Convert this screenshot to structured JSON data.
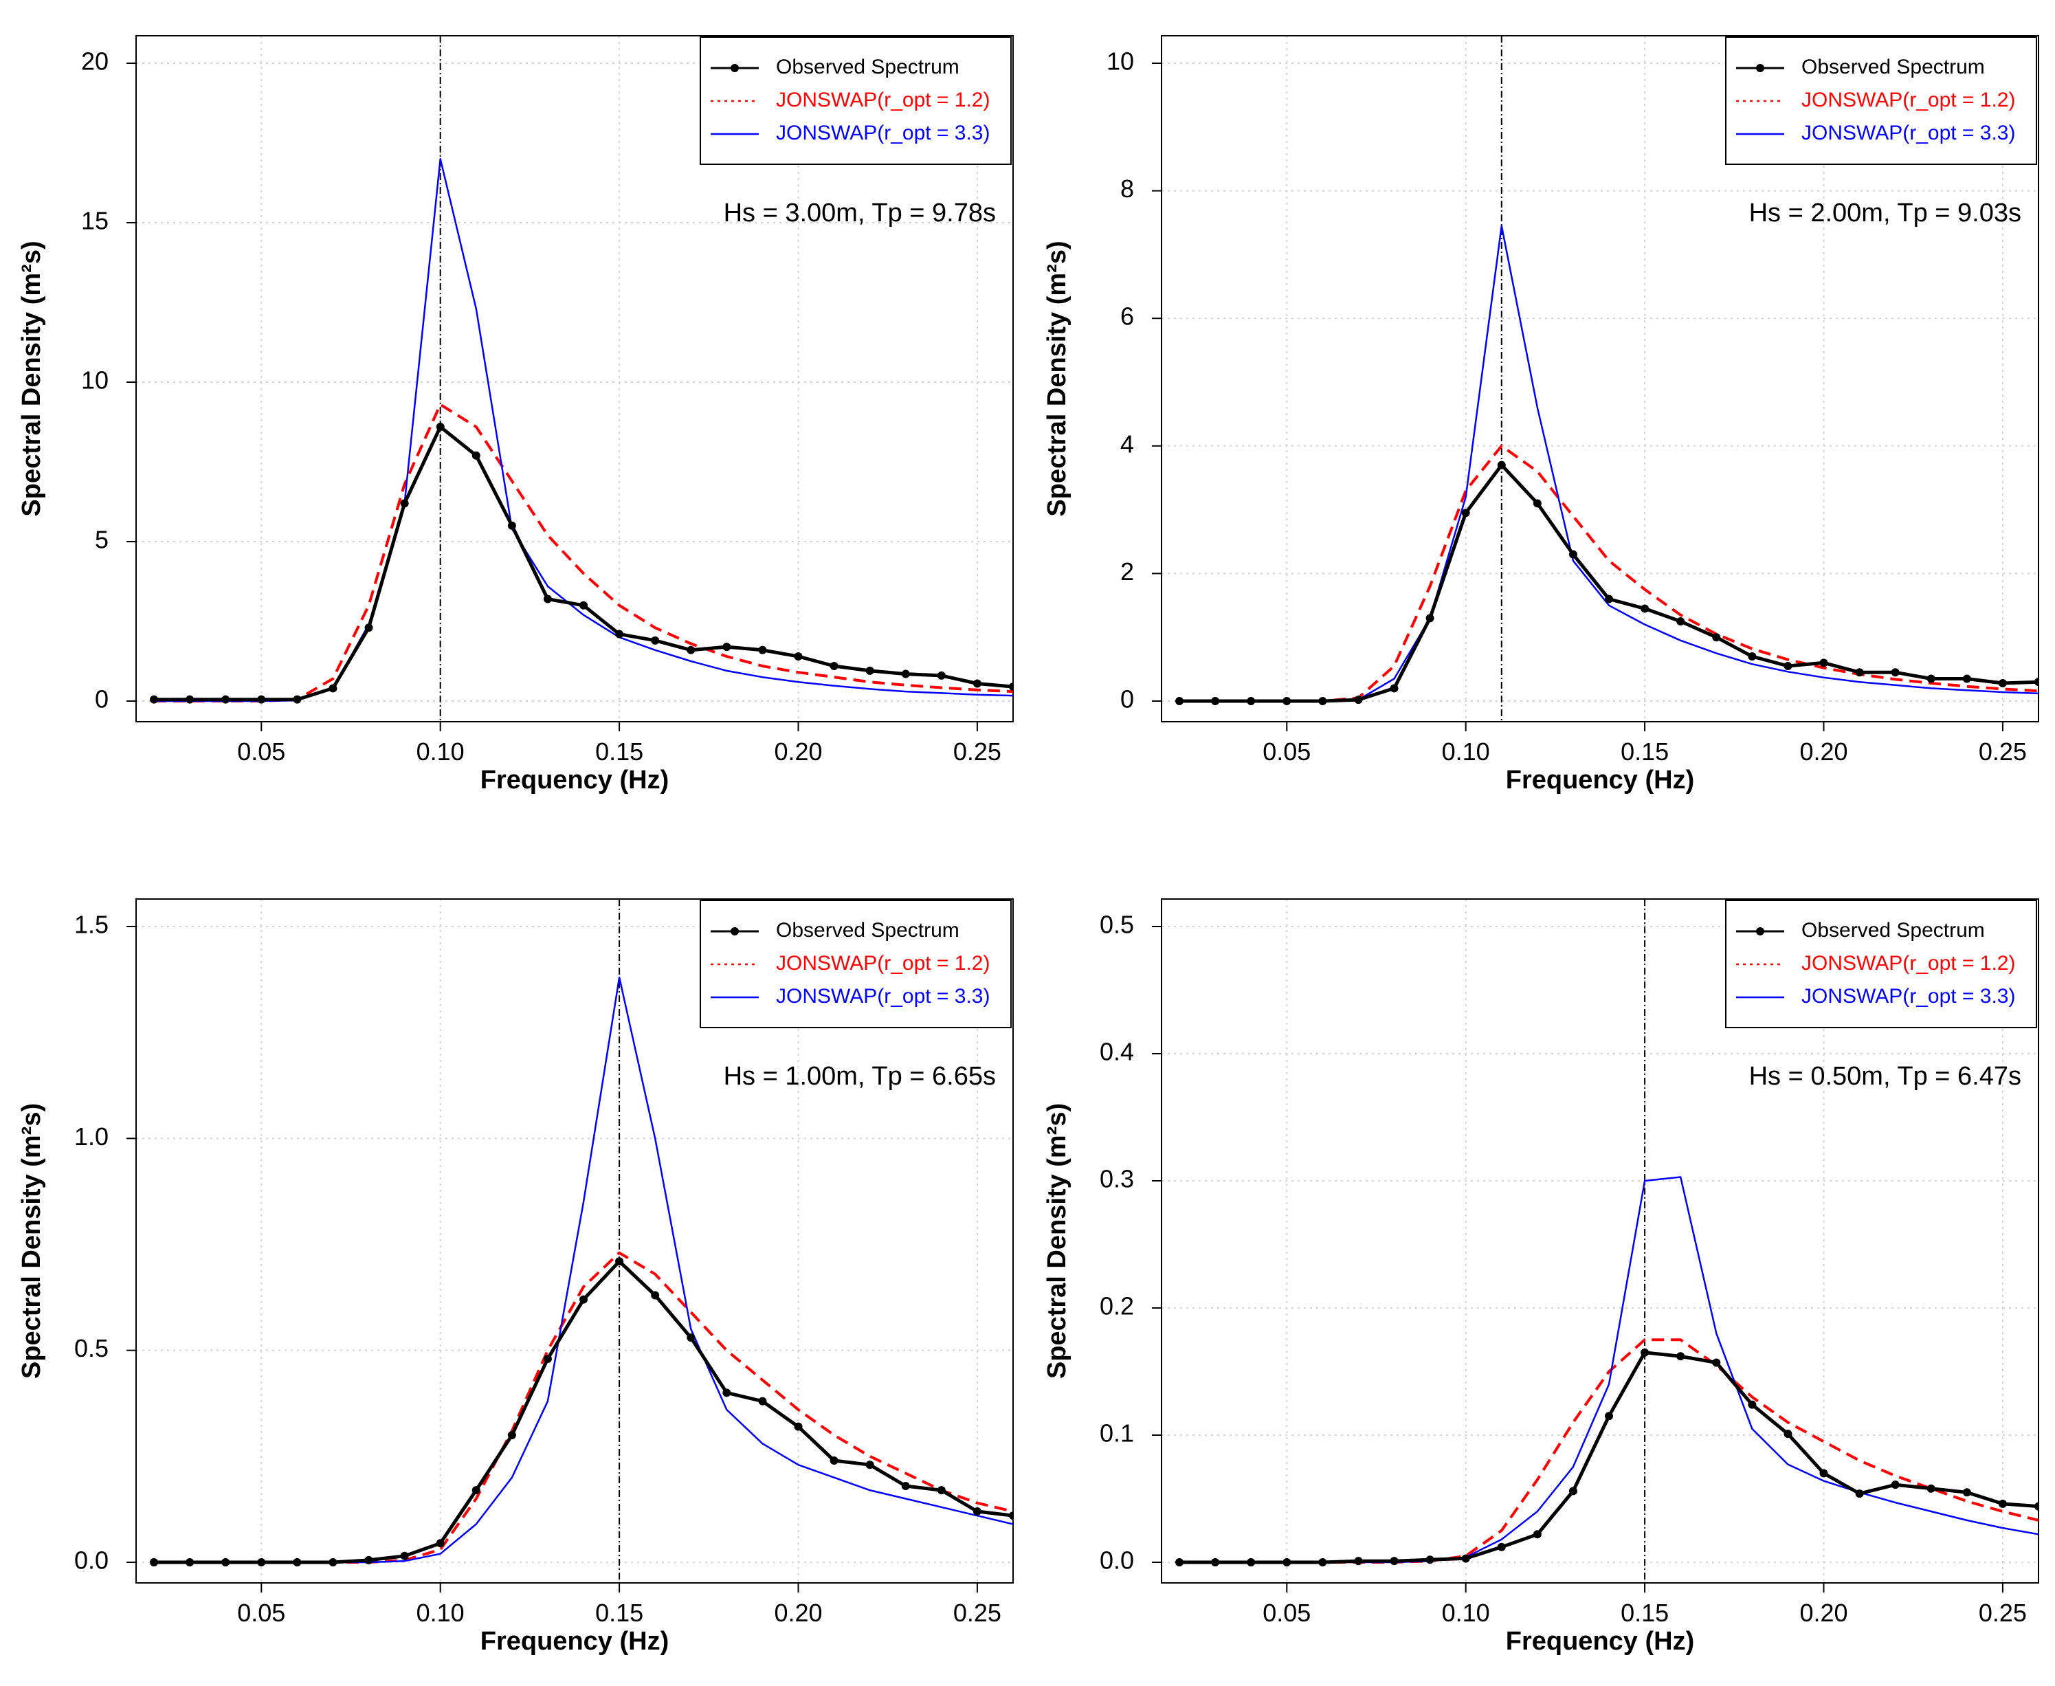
{
  "colors": {
    "observed": "#000000",
    "jonswap_12": "#ff0000",
    "jonswap_33": "#0000ff",
    "grid": "#d3d3d3",
    "peak_line": "#000000"
  },
  "chart_data": [
    {
      "type": "line",
      "panel": "top-left",
      "title": "",
      "xlabel": "Frequency (Hz)",
      "ylabel": "Spectral Density",
      "ylabel_unit": "(m²s)",
      "xlim": [
        0.015,
        0.26
      ],
      "ylim": [
        0,
        20
      ],
      "xticks": [
        0.05,
        0.1,
        0.15,
        0.2,
        0.25
      ],
      "xtick_labels": [
        "0.05",
        "0.10",
        "0.15",
        "0.20",
        "0.25"
      ],
      "yticks": [
        0,
        5,
        10,
        15,
        20
      ],
      "ytick_labels": [
        "0",
        "5",
        "10",
        "15",
        "20"
      ],
      "peak_freq": 0.1,
      "annotation": "Hs = 3.00m,  Tp = 9.78s",
      "legend": [
        "Observed Spectrum",
        "JONSWAP(r_opt = 1.2)",
        "JONSWAP(r_opt = 3.3)"
      ],
      "legend_position": "top-right",
      "series": [
        {
          "name": "Observed Spectrum",
          "x": [
            0.02,
            0.03,
            0.04,
            0.05,
            0.06,
            0.07,
            0.08,
            0.09,
            0.1,
            0.11,
            0.12,
            0.13,
            0.14,
            0.15,
            0.16,
            0.17,
            0.18,
            0.19,
            0.2,
            0.21,
            0.22,
            0.23,
            0.24,
            0.25,
            0.26
          ],
          "values": [
            0.05,
            0.05,
            0.05,
            0.05,
            0.05,
            0.4,
            2.3,
            6.2,
            8.6,
            7.7,
            5.5,
            3.2,
            3.0,
            2.1,
            1.9,
            1.6,
            1.7,
            1.6,
            1.4,
            1.1,
            0.95,
            0.85,
            0.8,
            0.55,
            0.45
          ]
        },
        {
          "name": "JONSWAP(r_opt = 1.2)",
          "x": [
            0.02,
            0.03,
            0.04,
            0.05,
            0.06,
            0.07,
            0.08,
            0.09,
            0.1,
            0.11,
            0.12,
            0.13,
            0.14,
            0.15,
            0.16,
            0.17,
            0.18,
            0.19,
            0.2,
            0.21,
            0.22,
            0.23,
            0.24,
            0.25,
            0.26
          ],
          "values": [
            0,
            0,
            0,
            0,
            0.05,
            0.7,
            3.0,
            6.8,
            9.3,
            8.6,
            6.9,
            5.2,
            4.0,
            3.0,
            2.3,
            1.8,
            1.4,
            1.1,
            0.9,
            0.75,
            0.6,
            0.5,
            0.42,
            0.35,
            0.3
          ]
        },
        {
          "name": "JONSWAP(r_opt = 3.3)",
          "x": [
            0.02,
            0.03,
            0.04,
            0.05,
            0.06,
            0.07,
            0.08,
            0.09,
            0.1,
            0.11,
            0.12,
            0.13,
            0.14,
            0.15,
            0.16,
            0.17,
            0.18,
            0.19,
            0.2,
            0.21,
            0.22,
            0.23,
            0.24,
            0.25,
            0.26
          ],
          "values": [
            0,
            0,
            0,
            0,
            0.02,
            0.4,
            2.4,
            6.2,
            17.0,
            12.3,
            5.4,
            3.6,
            2.7,
            2.0,
            1.6,
            1.25,
            0.95,
            0.75,
            0.6,
            0.48,
            0.38,
            0.3,
            0.25,
            0.2,
            0.17
          ]
        }
      ]
    },
    {
      "type": "line",
      "panel": "top-right",
      "title": "",
      "xlabel": "Frequency (Hz)",
      "ylabel": "Spectral Density",
      "ylabel_unit": "(m²s)",
      "xlim": [
        0.015,
        0.26
      ],
      "ylim": [
        0,
        10
      ],
      "xticks": [
        0.05,
        0.1,
        0.15,
        0.2,
        0.25
      ],
      "xtick_labels": [
        "0.05",
        "0.10",
        "0.15",
        "0.20",
        "0.25"
      ],
      "yticks": [
        0,
        2,
        4,
        6,
        8,
        10
      ],
      "ytick_labels": [
        "0",
        "2",
        "4",
        "6",
        "8",
        "10"
      ],
      "peak_freq": 0.11,
      "annotation": "Hs = 2.00m,  Tp = 9.03s",
      "legend": [
        "Observed Spectrum",
        "JONSWAP(r_opt = 1.2)",
        "JONSWAP(r_opt = 3.3)"
      ],
      "legend_position": "top-right",
      "series": [
        {
          "name": "Observed Spectrum",
          "x": [
            0.02,
            0.03,
            0.04,
            0.05,
            0.06,
            0.07,
            0.08,
            0.09,
            0.1,
            0.11,
            0.12,
            0.13,
            0.14,
            0.15,
            0.16,
            0.17,
            0.18,
            0.19,
            0.2,
            0.21,
            0.22,
            0.23,
            0.24,
            0.25,
            0.26
          ],
          "values": [
            0,
            0,
            0,
            0,
            0,
            0.02,
            0.2,
            1.3,
            2.95,
            3.7,
            3.1,
            2.3,
            1.6,
            1.45,
            1.25,
            1.0,
            0.7,
            0.55,
            0.6,
            0.45,
            0.45,
            0.35,
            0.35,
            0.28,
            0.3
          ]
        },
        {
          "name": "JONSWAP(r_opt = 1.2)",
          "x": [
            0.02,
            0.03,
            0.04,
            0.05,
            0.06,
            0.07,
            0.08,
            0.09,
            0.1,
            0.11,
            0.12,
            0.13,
            0.14,
            0.15,
            0.16,
            0.17,
            0.18,
            0.19,
            0.2,
            0.21,
            0.22,
            0.23,
            0.24,
            0.25,
            0.26
          ],
          "values": [
            0,
            0,
            0,
            0,
            0,
            0.05,
            0.55,
            1.8,
            3.3,
            4.0,
            3.6,
            2.9,
            2.2,
            1.75,
            1.35,
            1.05,
            0.82,
            0.65,
            0.52,
            0.42,
            0.34,
            0.28,
            0.23,
            0.19,
            0.16
          ]
        },
        {
          "name": "JONSWAP(r_opt = 3.3)",
          "x": [
            0.02,
            0.03,
            0.04,
            0.05,
            0.06,
            0.07,
            0.08,
            0.09,
            0.1,
            0.11,
            0.12,
            0.13,
            0.14,
            0.15,
            0.16,
            0.17,
            0.18,
            0.19,
            0.2,
            0.21,
            0.22,
            0.23,
            0.24,
            0.25,
            0.26
          ],
          "values": [
            0,
            0,
            0,
            0,
            0,
            0.02,
            0.35,
            1.3,
            3.2,
            7.45,
            4.6,
            2.2,
            1.5,
            1.2,
            0.95,
            0.75,
            0.58,
            0.46,
            0.37,
            0.3,
            0.25,
            0.2,
            0.17,
            0.14,
            0.12
          ]
        }
      ]
    },
    {
      "type": "line",
      "panel": "bottom-left",
      "title": "",
      "xlabel": "Frequency (Hz)",
      "ylabel": "Spectral Density",
      "ylabel_unit": "(m²s)",
      "xlim": [
        0.015,
        0.26
      ],
      "ylim": [
        0,
        1.5
      ],
      "xticks": [
        0.05,
        0.1,
        0.15,
        0.2,
        0.25
      ],
      "xtick_labels": [
        "0.05",
        "0.10",
        "0.15",
        "0.20",
        "0.25"
      ],
      "yticks": [
        0,
        0.5,
        1.0,
        1.5
      ],
      "ytick_labels": [
        "0.0",
        "0.5",
        "1.0",
        "1.5"
      ],
      "peak_freq": 0.15,
      "annotation": "Hs = 1.00m,  Tp = 6.65s",
      "legend": [
        "Observed Spectrum",
        "JONSWAP(r_opt = 1.2)",
        "JONSWAP(r_opt = 3.3)"
      ],
      "legend_position": "top-right",
      "series": [
        {
          "name": "Observed Spectrum",
          "x": [
            0.02,
            0.03,
            0.04,
            0.05,
            0.06,
            0.07,
            0.08,
            0.09,
            0.1,
            0.11,
            0.12,
            0.13,
            0.14,
            0.15,
            0.16,
            0.17,
            0.18,
            0.19,
            0.2,
            0.21,
            0.22,
            0.23,
            0.24,
            0.25,
            0.26
          ],
          "values": [
            0,
            0,
            0,
            0,
            0,
            0,
            0.005,
            0.015,
            0.045,
            0.17,
            0.3,
            0.48,
            0.62,
            0.71,
            0.63,
            0.53,
            0.4,
            0.38,
            0.32,
            0.24,
            0.23,
            0.18,
            0.17,
            0.12,
            0.11
          ]
        },
        {
          "name": "JONSWAP(r_opt = 1.2)",
          "x": [
            0.02,
            0.03,
            0.04,
            0.05,
            0.06,
            0.07,
            0.08,
            0.09,
            0.1,
            0.11,
            0.12,
            0.13,
            0.14,
            0.15,
            0.16,
            0.17,
            0.18,
            0.19,
            0.2,
            0.21,
            0.22,
            0.23,
            0.24,
            0.25,
            0.26
          ],
          "values": [
            0,
            0,
            0,
            0,
            0,
            0,
            0,
            0.005,
            0.03,
            0.15,
            0.31,
            0.5,
            0.65,
            0.73,
            0.68,
            0.59,
            0.5,
            0.43,
            0.36,
            0.3,
            0.25,
            0.21,
            0.17,
            0.14,
            0.12
          ]
        },
        {
          "name": "JONSWAP(r_opt = 3.3)",
          "x": [
            0.02,
            0.03,
            0.04,
            0.05,
            0.06,
            0.07,
            0.08,
            0.09,
            0.1,
            0.11,
            0.12,
            0.13,
            0.14,
            0.15,
            0.16,
            0.17,
            0.18,
            0.19,
            0.2,
            0.21,
            0.22,
            0.23,
            0.24,
            0.25,
            0.26
          ],
          "values": [
            0,
            0,
            0,
            0,
            0,
            0,
            0,
            0.003,
            0.02,
            0.09,
            0.2,
            0.38,
            0.85,
            1.38,
            1.0,
            0.55,
            0.36,
            0.28,
            0.23,
            0.2,
            0.17,
            0.15,
            0.13,
            0.11,
            0.09
          ]
        }
      ]
    },
    {
      "type": "line",
      "panel": "bottom-right",
      "title": "",
      "xlabel": "Frequency (Hz)",
      "ylabel": "Spectral Density",
      "ylabel_unit": "(m²s)",
      "xlim": [
        0.015,
        0.26
      ],
      "ylim": [
        0,
        0.5
      ],
      "xticks": [
        0.05,
        0.1,
        0.15,
        0.2,
        0.25
      ],
      "xtick_labels": [
        "0.05",
        "0.10",
        "0.15",
        "0.20",
        "0.25"
      ],
      "yticks": [
        0,
        0.1,
        0.2,
        0.3,
        0.4,
        0.5
      ],
      "ytick_labels": [
        "0.0",
        "0.1",
        "0.2",
        "0.3",
        "0.4",
        "0.5"
      ],
      "peak_freq": 0.15,
      "annotation": "Hs = 0.50m,  Tp = 6.47s",
      "legend": [
        "Observed Spectrum",
        "JONSWAP(r_opt = 1.2)",
        "JONSWAP(r_opt = 3.3)"
      ],
      "legend_position": "top-right",
      "series": [
        {
          "name": "Observed Spectrum",
          "x": [
            0.02,
            0.03,
            0.04,
            0.05,
            0.06,
            0.07,
            0.08,
            0.09,
            0.1,
            0.11,
            0.12,
            0.13,
            0.14,
            0.15,
            0.16,
            0.17,
            0.18,
            0.19,
            0.2,
            0.21,
            0.22,
            0.23,
            0.24,
            0.25,
            0.26
          ],
          "values": [
            0,
            0,
            0,
            0,
            0,
            0.001,
            0.001,
            0.002,
            0.003,
            0.012,
            0.022,
            0.056,
            0.115,
            0.165,
            0.162,
            0.157,
            0.124,
            0.101,
            0.07,
            0.054,
            0.061,
            0.058,
            0.055,
            0.046,
            0.044
          ]
        },
        {
          "name": "JONSWAP(r_opt = 1.2)",
          "x": [
            0.02,
            0.03,
            0.04,
            0.05,
            0.06,
            0.07,
            0.08,
            0.09,
            0.1,
            0.11,
            0.12,
            0.13,
            0.14,
            0.15,
            0.16,
            0.17,
            0.18,
            0.19,
            0.2,
            0.21,
            0.22,
            0.23,
            0.24,
            0.25,
            0.26
          ],
          "values": [
            0,
            0,
            0,
            0,
            0,
            0,
            0,
            0.001,
            0.005,
            0.025,
            0.065,
            0.11,
            0.15,
            0.175,
            0.175,
            0.155,
            0.13,
            0.11,
            0.095,
            0.08,
            0.068,
            0.058,
            0.048,
            0.04,
            0.033
          ]
        },
        {
          "name": "JONSWAP(r_opt = 3.3)",
          "x": [
            0.02,
            0.03,
            0.04,
            0.05,
            0.06,
            0.07,
            0.08,
            0.09,
            0.1,
            0.11,
            0.12,
            0.13,
            0.14,
            0.15,
            0.16,
            0.17,
            0.18,
            0.19,
            0.2,
            0.21,
            0.22,
            0.23,
            0.24,
            0.25,
            0.26
          ],
          "values": [
            0,
            0,
            0,
            0,
            0,
            0,
            0,
            0.001,
            0.004,
            0.018,
            0.04,
            0.075,
            0.14,
            0.3,
            0.303,
            0.18,
            0.105,
            0.077,
            0.064,
            0.055,
            0.047,
            0.04,
            0.033,
            0.027,
            0.022
          ]
        }
      ]
    }
  ]
}
